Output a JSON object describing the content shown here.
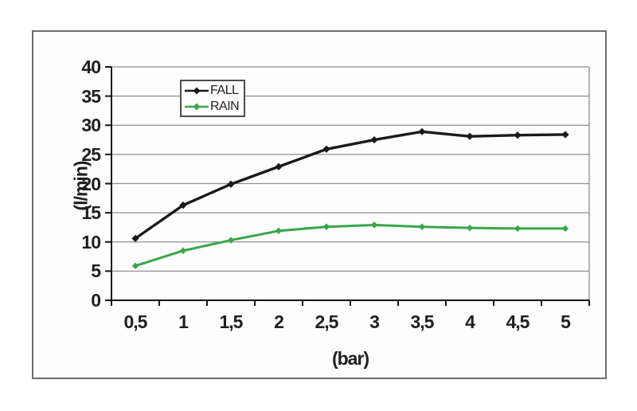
{
  "page": {
    "background": "#ffffff"
  },
  "chart_data": {
    "type": "line",
    "title": "",
    "xlabel": "(bar)",
    "ylabel": "(l/min)",
    "categories": [
      "0,5",
      "1",
      "1,5",
      "2",
      "2,5",
      "3",
      "3,5",
      "4",
      "4,5",
      "5"
    ],
    "x_values": [
      0.5,
      1,
      1.5,
      2,
      2.5,
      3,
      3.5,
      4,
      4.5,
      5
    ],
    "series": [
      {
        "name": "FALL",
        "color": "#1a1a1a",
        "marker": "diamond",
        "values": [
          10.6,
          16.3,
          19.9,
          22.9,
          25.9,
          27.5,
          28.9,
          28.1,
          28.3,
          28.4
        ]
      },
      {
        "name": "RAIN",
        "color": "#3aa64a",
        "marker": "diamond",
        "values": [
          5.9,
          8.5,
          10.3,
          11.9,
          12.6,
          12.9,
          12.6,
          12.4,
          12.3,
          12.3
        ]
      }
    ],
    "ylim": [
      0,
      40
    ],
    "ytick_step": 5,
    "ytick_labels": [
      "0",
      "5",
      "10",
      "15",
      "20",
      "25",
      "30",
      "35",
      "40"
    ],
    "grid": "horizontal",
    "legend_position": "top-left-inset",
    "colors": {
      "gridline": "#8f8f8f",
      "axis": "#141414",
      "plot_right_border": "#8f8f8f",
      "frame_border": "#6e6e6e",
      "text": "#1f1f1f"
    }
  }
}
